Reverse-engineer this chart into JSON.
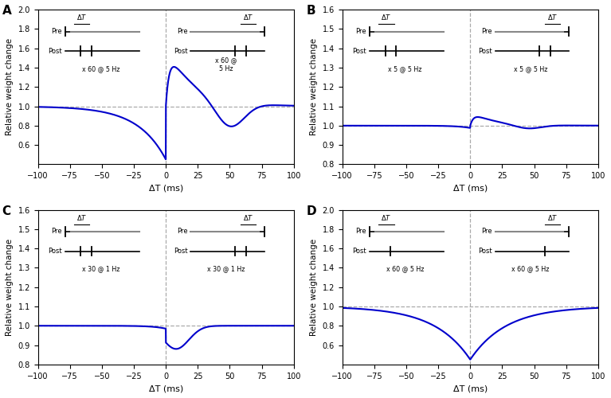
{
  "panels": [
    "A",
    "B",
    "C",
    "D"
  ],
  "xlim": [
    -100,
    100
  ],
  "xticks": [
    -100,
    -75,
    -50,
    -25,
    0,
    25,
    50,
    75,
    100
  ],
  "xlabel": "ΔT (ms)",
  "ylabel": "Relative weight change",
  "line_color": "#0000cc",
  "dashed_color": "#aaaaaa",
  "panel_A": {
    "ylim": [
      0.4,
      2.0
    ],
    "yticks": [
      0.6,
      0.8,
      1.0,
      1.2,
      1.4,
      1.6,
      1.8,
      2.0
    ],
    "label_left": "x 60 @ 5 Hz",
    "label_right": "x 60 @\n5 Hz",
    "left_post_single": false,
    "right_post_single": false
  },
  "panel_B": {
    "ylim": [
      0.8,
      1.6
    ],
    "yticks": [
      0.8,
      0.9,
      1.0,
      1.1,
      1.2,
      1.3,
      1.4,
      1.5,
      1.6
    ],
    "label_left": "x 5 @ 5 Hz",
    "label_right": "x 5 @ 5 Hz",
    "left_post_single": false,
    "right_post_single": false
  },
  "panel_C": {
    "ylim": [
      0.8,
      1.6
    ],
    "yticks": [
      0.8,
      0.9,
      1.0,
      1.1,
      1.2,
      1.3,
      1.4,
      1.5,
      1.6
    ],
    "label_left": "x 30 @ 1 Hz",
    "label_right": "x 30 @ 1 Hz",
    "left_post_single": false,
    "right_post_single": false
  },
  "panel_D": {
    "ylim": [
      0.4,
      2.0
    ],
    "yticks": [
      0.6,
      0.8,
      1.0,
      1.2,
      1.4,
      1.6,
      1.8,
      2.0
    ],
    "label_left": "x 60 @ 5 Hz",
    "label_right": "x 60 @ 5 Hz",
    "left_post_single": true,
    "right_post_single": true
  }
}
